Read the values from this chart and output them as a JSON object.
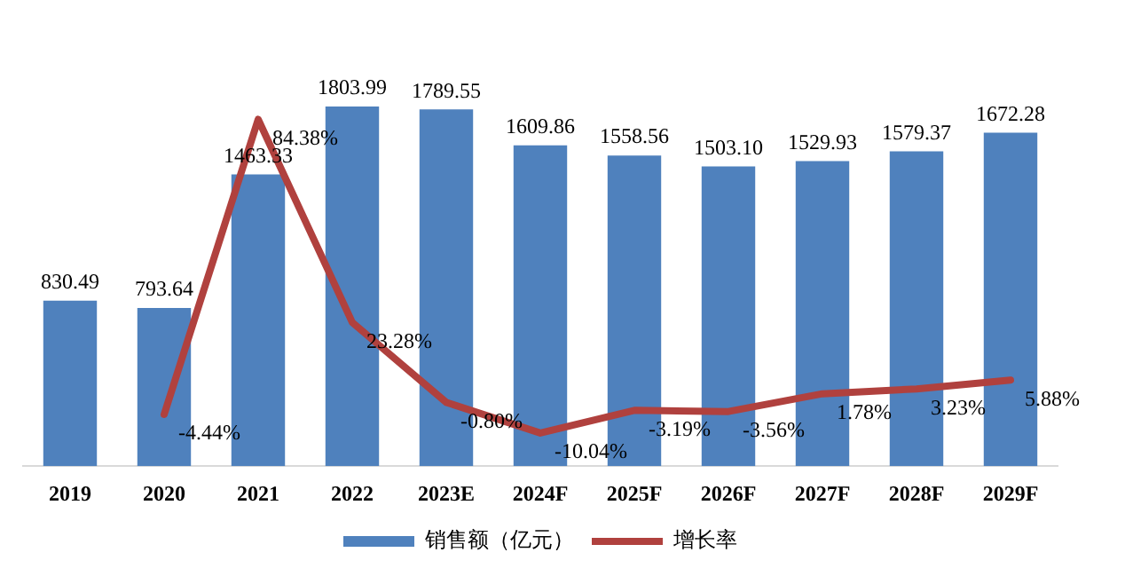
{
  "chart_data": {
    "type": "bar",
    "categories": [
      "2019",
      "2020",
      "2021",
      "2022",
      "2023E",
      "2024F",
      "2025F",
      "2026F",
      "2027F",
      "2028F",
      "2029F"
    ],
    "series": [
      {
        "name": "销售额（亿元）",
        "color": "#4f81bd",
        "value_labels": [
          "830.49",
          "793.64",
          "1463.33",
          "1803.99",
          "1789.55",
          "1609.86",
          "1558.56",
          "1503.10",
          "1529.93",
          "1579.37",
          "1672.28"
        ],
        "values": [
          830.49,
          793.64,
          1463.33,
          1803.99,
          1789.55,
          1609.86,
          1558.56,
          1503.1,
          1529.93,
          1579.37,
          1672.28
        ]
      },
      {
        "name": "增长率",
        "type": "line",
        "axis": "y2",
        "color": "#b0413e",
        "value_labels": [
          null,
          "-4.44%",
          "84.38%",
          "23.28%",
          "-0.80%",
          "-10.04%",
          "-3.19%",
          "-3.56%",
          "1.78%",
          "3.23%",
          "5.88%"
        ],
        "values": [
          null,
          -4.44,
          84.38,
          23.28,
          -0.8,
          -10.04,
          -3.19,
          -3.56,
          1.78,
          3.23,
          5.88
        ]
      }
    ],
    "data_labels": true,
    "legend": "bottom",
    "tick_labels": "x",
    "grid": false,
    "marker": "none",
    "line_style": "solid"
  }
}
